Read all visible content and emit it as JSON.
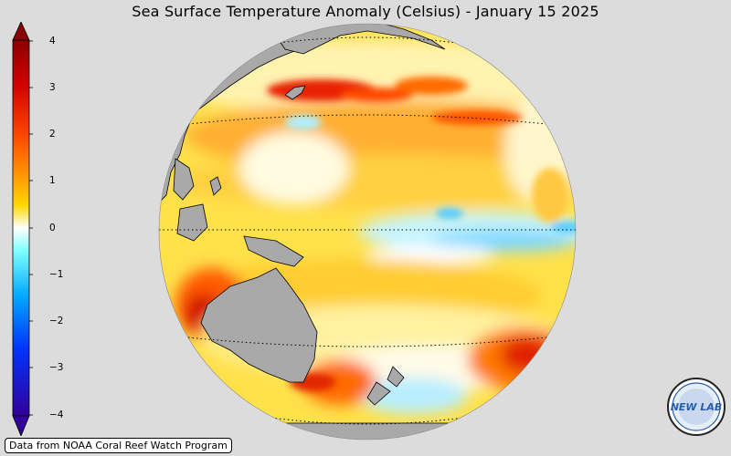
{
  "title": "Sea Surface Temperature Anomaly (Celsius) - January 15 2025",
  "colorbar": {
    "ticks": [
      "4",
      "3",
      "2",
      "1",
      "0",
      "−1",
      "−2",
      "−3",
      "−4"
    ],
    "colors": [
      "#8b0000",
      "#d40000",
      "#ff4500",
      "#ff9000",
      "#ffd700",
      "#ffffff",
      "#7fffff",
      "#00aaff",
      "#0033ff",
      "#330099"
    ]
  },
  "map": {
    "projection": "orthographic",
    "center": "Western/Central Pacific",
    "land_color": "#a9a9a9",
    "graticule": "dotted latitude lines"
  },
  "credit": "Data from NOAA Coral Reef Watch Program",
  "logo": {
    "text": "NEW LAB"
  }
}
